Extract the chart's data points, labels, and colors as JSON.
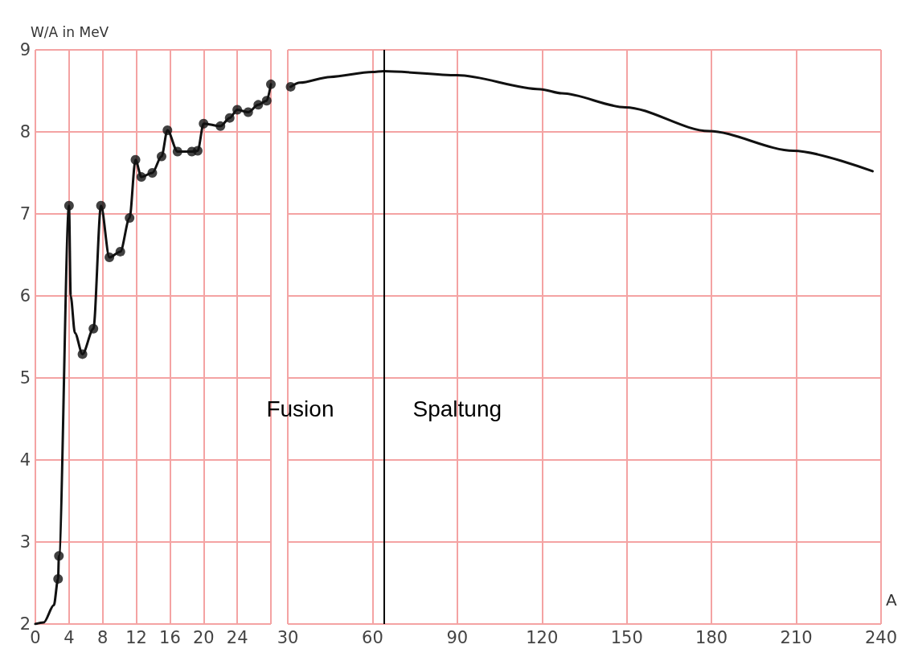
{
  "chart_data": [
    {
      "type": "line",
      "ylabel": "W/A in MeV",
      "xlim": [
        0,
        28
      ],
      "xticks": [
        0,
        4,
        8,
        12,
        16,
        20,
        24,
        {
          "value": 28,
          "label": null
        }
      ],
      "ylim": [
        2,
        9
      ],
      "yticks": [
        2,
        3,
        4,
        5,
        6,
        7,
        8,
        9
      ],
      "grid": true,
      "series": [
        {
          "color": "#111111",
          "marker": "none",
          "x": [
            0,
            1,
            2.2,
            2.7,
            2.8,
            4,
            4.2,
            4.7,
            5.6,
            6.9,
            7.8,
            8.8,
            10.1,
            11.2,
            11.9,
            12.6,
            13.9,
            15,
            15.7,
            16.9,
            18.6,
            19.3,
            20,
            22,
            23.1,
            24,
            25.3,
            26.5,
            27.5,
            28
          ],
          "values": [
            2.0,
            2.02,
            2.23,
            2.55,
            2.83,
            7.1,
            6.0,
            5.55,
            5.29,
            5.6,
            7.1,
            6.47,
            6.54,
            6.95,
            7.66,
            7.45,
            7.5,
            7.7,
            8.02,
            7.76,
            7.76,
            7.77,
            8.1,
            8.07,
            8.17,
            8.27,
            8.24,
            8.33,
            8.38,
            8.58
          ]
        },
        {
          "type": "scatter",
          "color": "#111111",
          "marker": "circle",
          "x": [
            2.7,
            2.8,
            4,
            5.6,
            6.9,
            7.8,
            8.8,
            10.1,
            11.2,
            11.9,
            12.6,
            13.9,
            15,
            15.7,
            16.9,
            18.6,
            19.3,
            20,
            22,
            23.1,
            24,
            25.3,
            26.5,
            27.5,
            28
          ],
          "values": [
            2.55,
            2.83,
            7.1,
            5.29,
            5.6,
            7.1,
            6.47,
            6.54,
            6.95,
            7.66,
            7.45,
            7.5,
            7.7,
            8.02,
            7.76,
            7.76,
            7.77,
            8.1,
            8.07,
            8.17,
            8.27,
            8.24,
            8.33,
            8.38,
            8.58
          ]
        }
      ]
    },
    {
      "type": "line",
      "xlabel": "A",
      "xlim": [
        30,
        240
      ],
      "xticks": [
        30,
        60,
        90,
        120,
        150,
        180,
        210,
        240
      ],
      "ylim": [
        2,
        9
      ],
      "yticks": [
        2,
        3,
        4,
        5,
        6,
        7,
        8,
        9
      ],
      "grid": true,
      "tick_labels": "x",
      "series": [
        {
          "color": "#111111",
          "marker": "none",
          "x": [
            31,
            34.3,
            45,
            59.9,
            64,
            90,
            119.4,
            127,
            149.5,
            179,
            209,
            237
          ],
          "values": [
            8.55,
            8.6,
            8.67,
            8.73,
            8.74,
            8.69,
            8.52,
            8.47,
            8.3,
            8.01,
            7.77,
            7.52
          ]
        },
        {
          "type": "scatter",
          "color": "#111111",
          "marker": "circle",
          "x": [
            31
          ],
          "values": [
            8.55
          ]
        }
      ],
      "ref_lines": [
        {
          "axis": "x",
          "value": 64,
          "color": "#000000",
          "line_style": "solid"
        }
      ],
      "annotations": [
        "Fusion",
        "Spaltung"
      ]
    }
  ]
}
